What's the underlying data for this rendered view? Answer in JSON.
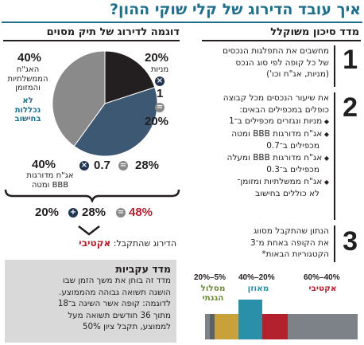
{
  "header": {
    "title": "איך עובד הדירוג של קלי שוקי ההון?"
  },
  "risk_column": {
    "title": "מדד סיכון משוקלל",
    "steps": [
      {
        "num": "1",
        "lines": [
          "מחשבים את התפלגות הנכסים",
          "של כל קופה לפי סוג הנכס",
          "(מניות, אג\"ח וכו')"
        ]
      },
      {
        "num": "2",
        "lines": [
          "את שיעור הנכסים מכל קבוצה",
          "כופלים במכפילים הבאים:"
        ],
        "bullets": [
          [
            "מניות ונגזרים מכפילים ב־1"
          ],
          [
            "אג\"ח מדורגות BBB ומטה",
            "מכפילים ב־0.7"
          ],
          [
            "אג\"ח מדורגות BBB ומעלה",
            "מכפילים ב־0.3"
          ],
          [
            "אג\"ח ממשלתיות ומזומן־",
            "לא כוללים בחישוב"
          ]
        ]
      },
      {
        "num": "3",
        "lines": [
          "הנתון שהתקבל מסווג",
          "את הקופה באחת מ־3",
          "הקטגוריות הבאות*"
        ]
      }
    ]
  },
  "example": {
    "title": "דוגמה לדירוג של תיק מסוים",
    "pie_data": {
      "type": "pie",
      "slices": [
        {
          "label": "מניות",
          "value": 20,
          "color": "#231f20"
        },
        {
          "label": "אג\"ח מדורגות BBB ומטה",
          "value": 40,
          "color": "#3d5872"
        },
        {
          "label": "האג\"ח הממשלתיות והמזומן",
          "value": 40,
          "color": "#8a8a8a"
        }
      ]
    },
    "labels": {
      "gov_pct": "40%",
      "gov_label_lines": [
        "האג\"ח",
        "הממשלתיות",
        "והמזומן"
      ],
      "gov_note_lines": [
        "לא",
        "נכללות",
        "בחישוב"
      ],
      "stocks_pct": "20%",
      "stocks_label": "מניות",
      "stocks_mult": "1",
      "stocks_result": "20%",
      "bonds_pct": "40%",
      "bonds_label_lines": [
        "אג\"ח מדורגות",
        "BBB ומטה"
      ],
      "bonds_mult": "0.7",
      "bonds_result": "28%"
    },
    "sum": {
      "a": "20%",
      "b": "28%",
      "total": "48%"
    },
    "result": {
      "label": "הדירוג שהתקבל:",
      "value": "אקטיבי"
    }
  },
  "index_box": {
    "title": "מדד עקביות",
    "lines": [
      "מדד זה בוחן את משך הזמן שבו",
      "הושגה תשואה גבוהה מהממוצע.",
      "לדוגמה: קופה אשר השיגה ב־18",
      "מתוך 36 חודשים תשואה מעל",
      "לממוצע, תקבל ציון 50%"
    ]
  },
  "scale": {
    "categories": [
      {
        "label_lines": [
          "מסלול",
          "הגנתי"
        ],
        "range": "20%–5%",
        "color": "#6e8c3b"
      },
      {
        "label_lines": [
          "מאוזן"
        ],
        "range": "40%–20%",
        "color": "#2a8fa8"
      },
      {
        "label_lines": [
          "אקטיבי"
        ],
        "range": "60%–40%",
        "color": "#b2212d"
      }
    ],
    "bar_colors": {
      "base": "#7d8288",
      "segment1": "#c8a13a",
      "segment2": "#2a8fa8",
      "segment3": "#b2212d"
    }
  }
}
